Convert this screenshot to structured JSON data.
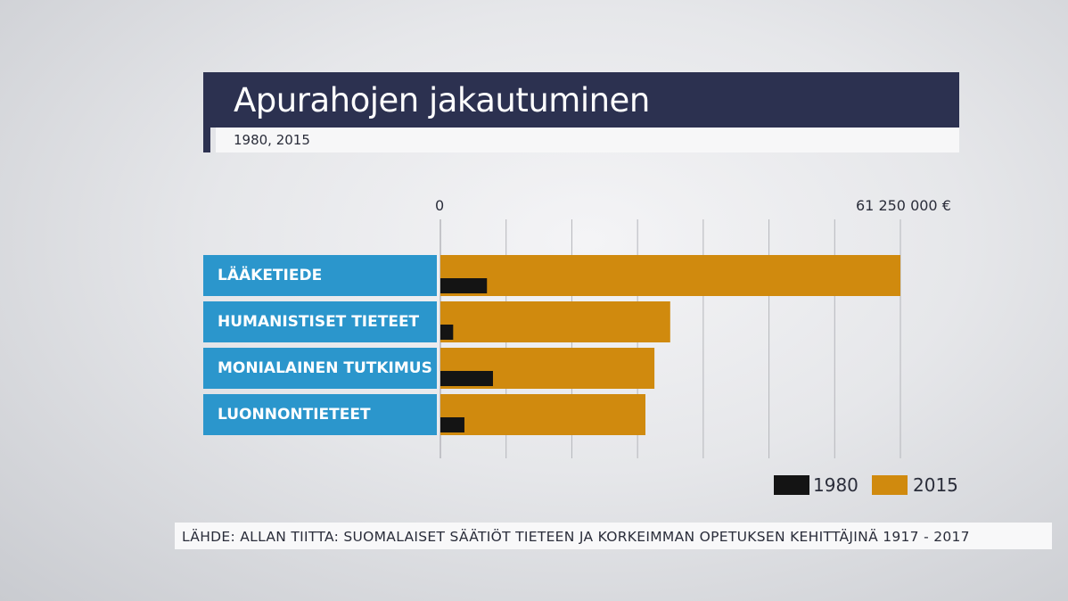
{
  "header": {
    "title": "Apurahojen jakautuminen",
    "subtitle": "1980, 2015"
  },
  "axis": {
    "min_label": "0",
    "max_label": "61 250 000 €"
  },
  "legend": {
    "series_1980": "1980",
    "series_2015": "2015"
  },
  "source": "LÄHDE: ALLAN TIITTA: SUOMALAISET SÄÄTIÖT TIETEEN JA KORKEIMMAN OPETUKSEN KEHITTÄJINÄ 1917 - 2017",
  "colors": {
    "title_bg": "#2c3150",
    "category_bg": "#2b96cc",
    "series_1980": "#141414",
    "series_2015": "#d08a0e",
    "gridline": "#b5b6bb"
  },
  "chart_data": {
    "type": "bar",
    "orientation": "horizontal",
    "title": "Apurahojen jakautuminen",
    "subtitle": "1980, 2015",
    "categories": [
      "LÄÄKETIEDE",
      "HUMANISTISET TIETEET",
      "MONIALAINEN TUTKIMUS",
      "LUONNONTIETEET"
    ],
    "series": [
      {
        "name": "2015",
        "values": [
          61250000,
          30600000,
          28500000,
          27300000
        ]
      },
      {
        "name": "1980",
        "values": [
          6200000,
          1700000,
          7000000,
          3200000
        ]
      }
    ],
    "xlim": [
      0,
      61250000
    ],
    "grid": true,
    "legend_position": "bottom-right"
  }
}
